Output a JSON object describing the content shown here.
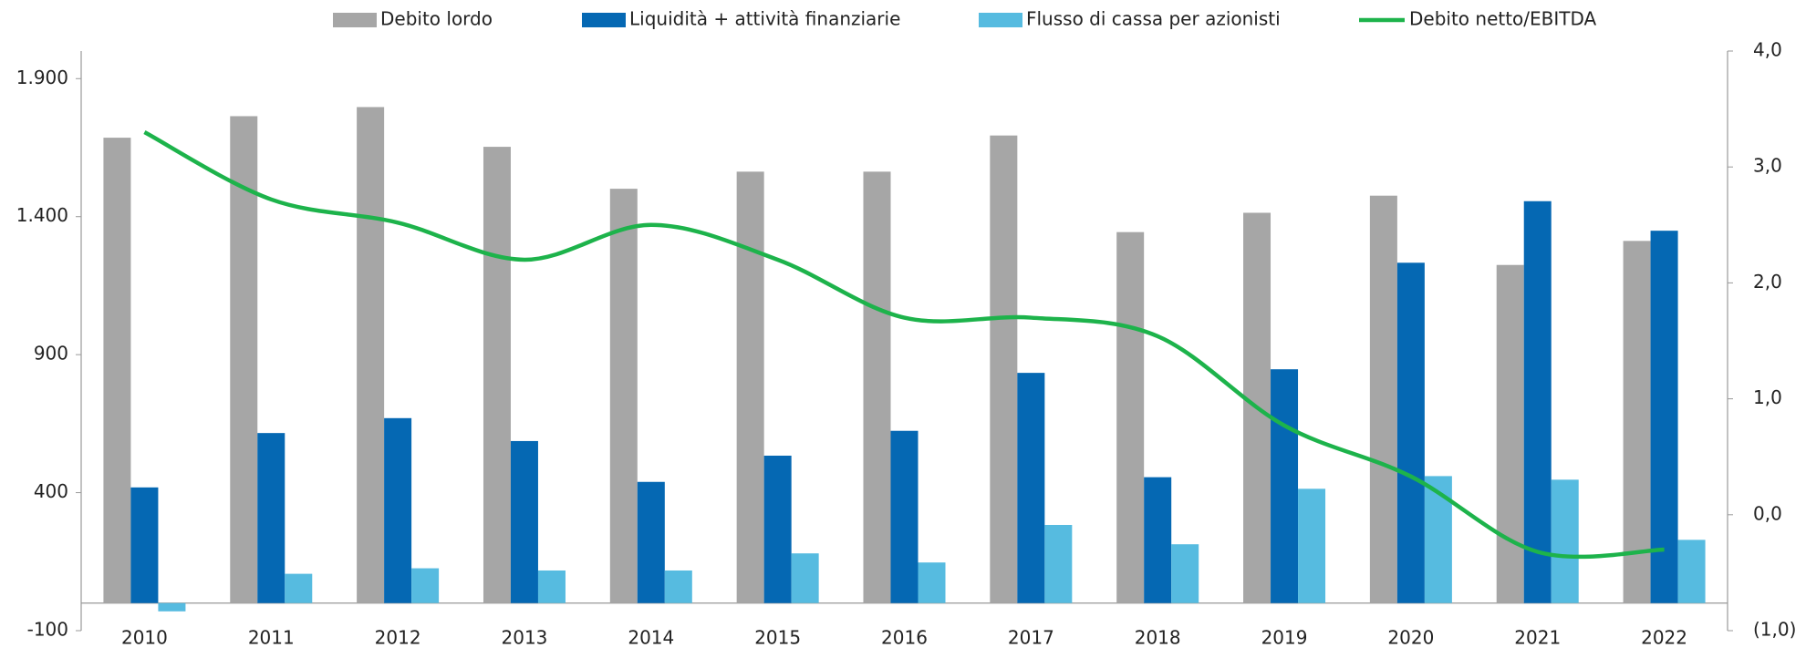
{
  "chart_data": {
    "type": "bar",
    "categories": [
      "2010",
      "2011",
      "2012",
      "2013",
      "2014",
      "2015",
      "2016",
      "2017",
      "2018",
      "2019",
      "2020",
      "2021",
      "2022"
    ],
    "series": [
      {
        "name": "Debito lordo",
        "color": "#a6a6a6",
        "values": [
          1686,
          1764,
          1797,
          1653,
          1501,
          1563,
          1563,
          1694,
          1344,
          1414,
          1476,
          1225,
          1312
        ]
      },
      {
        "name": "Liquidità + attività finanziarie",
        "color": "#0568b3",
        "values": [
          419,
          616,
          670,
          587,
          439,
          534,
          624,
          834,
          456,
          847,
          1233,
          1456,
          1349
        ]
      },
      {
        "name": "Flusso di cassa per azionisti",
        "color": "#56bbe0",
        "values": [
          -30,
          106,
          126,
          118,
          118,
          180,
          147,
          283,
          213,
          414,
          460,
          447,
          229
        ]
      },
      {
        "name": "Debito netto/EBITDA",
        "color": "#1db34b",
        "type": "line",
        "axis": "y2",
        "values": [
          3.3,
          2.72,
          2.52,
          2.2,
          2.5,
          2.2,
          1.7,
          1.7,
          1.54,
          0.77,
          0.33,
          -0.32,
          -0.3
        ]
      }
    ],
    "ylim": [
      -100,
      2000
    ],
    "yticks": [
      -100,
      400,
      900,
      {
        "value": 1400,
        "label": "1.400"
      },
      {
        "value": 1900,
        "label": "1.900"
      }
    ],
    "y2lim": [
      -1,
      4
    ],
    "y2ticks": [
      {
        "value": -1,
        "label": "(1,0)"
      },
      {
        "value": 0,
        "label": "0,0"
      },
      {
        "value": 1,
        "label": "1,0"
      },
      {
        "value": 2,
        "label": "2,0"
      },
      {
        "value": 3,
        "label": "3,0"
      },
      {
        "value": 4,
        "label": "4,0"
      }
    ],
    "legend": "top"
  }
}
